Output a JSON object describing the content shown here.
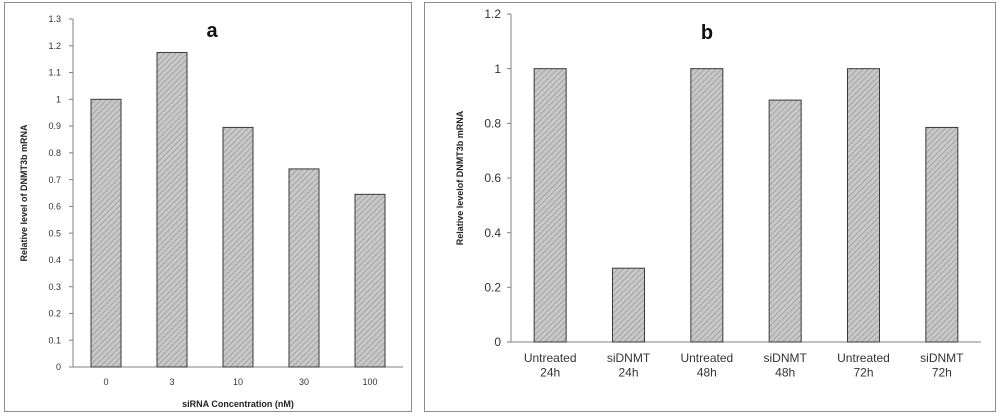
{
  "colors": {
    "bar_fill": "#c8c8c8",
    "bar_hatch": "#9a9a9a",
    "bar_stroke": "#3a3a3a",
    "axis": "#808080",
    "panel_border": "#8c8c8c"
  },
  "chart_data": [
    {
      "type": "bar",
      "panel_label": "a",
      "categories": [
        "0",
        "3",
        "10",
        "30",
        "100"
      ],
      "values": [
        1.0,
        1.175,
        0.895,
        0.74,
        0.645
      ],
      "xlabel": "siRNA Concentration (nM)",
      "ylabel": "Relative level of DNMT3b mRNA",
      "ylim": [
        0,
        1.3
      ],
      "yticks": [
        "0",
        "0.1",
        "0.2",
        "0.3",
        "0.4",
        "0.5",
        "0.6",
        "0.7",
        "0.8",
        "0.9",
        "1",
        "1.1",
        "1.2",
        "1.3"
      ],
      "grid": false,
      "legend": "none"
    },
    {
      "type": "bar",
      "panel_label": "b",
      "categories": [
        [
          "Untreated",
          "24h"
        ],
        [
          "siDNMT",
          "24h"
        ],
        [
          "Untreated",
          "48h"
        ],
        [
          "siDNMT",
          "48h"
        ],
        [
          "Untreated",
          "72h"
        ],
        [
          "siDNMT",
          "72h"
        ]
      ],
      "values": [
        1.0,
        0.27,
        1.0,
        0.885,
        1.0,
        0.785
      ],
      "xlabel": "",
      "ylabel": "Relative levelof DNMT3b mRNA",
      "ylim": [
        0,
        1.2
      ],
      "yticks": [
        "0",
        "0.2",
        "0.4",
        "0.6",
        "0.8",
        "1",
        "1.2"
      ],
      "grid": false,
      "legend": "none"
    }
  ]
}
